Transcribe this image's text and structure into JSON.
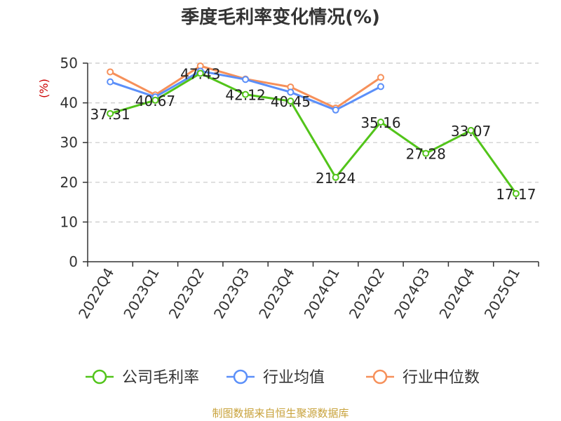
{
  "chart_data": {
    "type": "line",
    "title": "季度毛利率变化情况(%)",
    "ylabel": "(%)",
    "ylim": [
      0,
      50
    ],
    "yticks": [
      0,
      10,
      20,
      30,
      40,
      50
    ],
    "categories": [
      "2022Q4",
      "2023Q1",
      "2023Q2",
      "2023Q3",
      "2023Q4",
      "2024Q1",
      "2024Q2",
      "2024Q3",
      "2024Q4",
      "2025Q1"
    ],
    "grid": true,
    "legend_position": "bottom",
    "series": [
      {
        "name": "公司毛利率",
        "color": "#52c41a",
        "values": [
          37.31,
          40.67,
          47.43,
          42.12,
          40.45,
          21.24,
          35.16,
          27.28,
          33.07,
          17.17
        ],
        "labels": [
          "37.31",
          "40.67",
          "47.43",
          "42.12",
          "40.45",
          "21.24",
          "35.16",
          "27.28",
          "33.07",
          "17.17"
        ]
      },
      {
        "name": "行业均值",
        "color": "#5b8ff9",
        "values": [
          45.3,
          41.5,
          48.0,
          45.9,
          42.7,
          38.2,
          44.1,
          null,
          null,
          null
        ]
      },
      {
        "name": "行业中位数",
        "color": "#f6905a",
        "values": [
          47.8,
          42.0,
          49.3,
          46.0,
          44.0,
          38.7,
          46.4,
          null,
          null,
          null
        ]
      }
    ]
  },
  "source_text": "制图数据来自恒生聚源数据库"
}
